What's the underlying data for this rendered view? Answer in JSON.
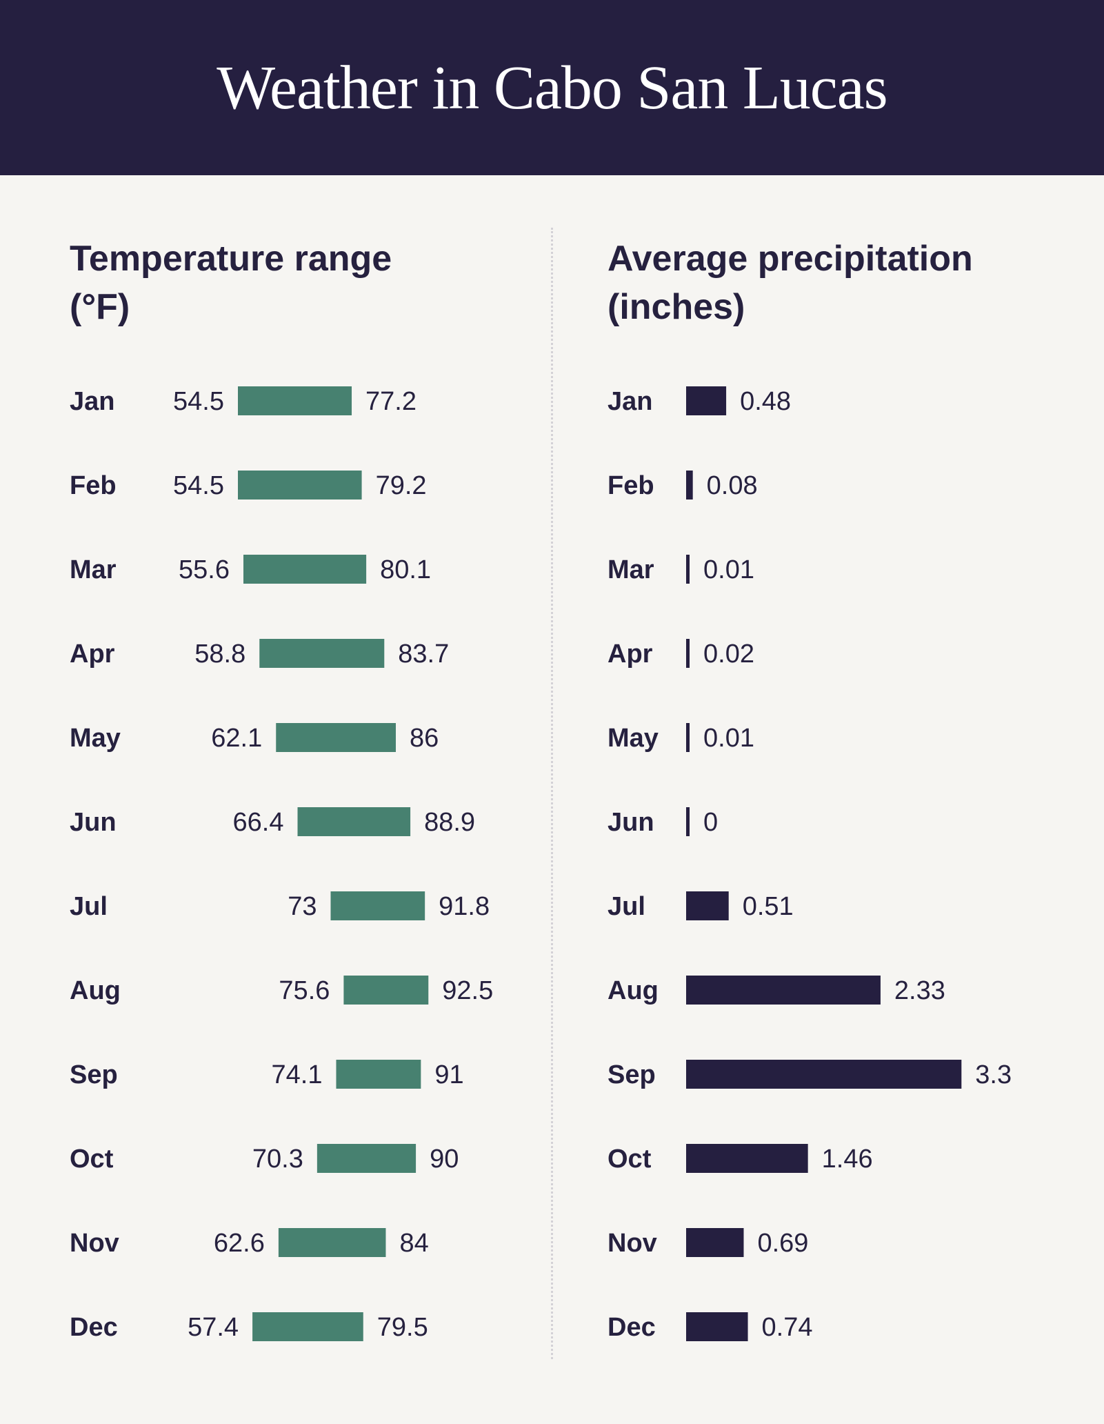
{
  "title": "Weather in Cabo San Lucas",
  "colors": {
    "header_bg": "#251f40",
    "background": "#f6f5f2",
    "temperature_bar": "#478170",
    "precipitation_bar": "#251f40",
    "text": "#26213f"
  },
  "chart_data": [
    {
      "type": "bar",
      "subtype": "floating-range",
      "orientation": "horizontal",
      "title": "Temperature range (°F)",
      "categories": [
        "Jan",
        "Feb",
        "Mar",
        "Apr",
        "May",
        "Jun",
        "Jul",
        "Aug",
        "Sep",
        "Oct",
        "Nov",
        "Dec"
      ],
      "series": [
        {
          "values": [
            54.5,
            54.5,
            55.6,
            58.8,
            62.1,
            66.4,
            73,
            75.6,
            74.1,
            70.3,
            62.6,
            57.4
          ]
        },
        {
          "values": [
            77.2,
            79.2,
            80.1,
            83.7,
            86,
            88.9,
            91.8,
            92.5,
            91,
            90,
            84,
            79.5
          ]
        }
      ],
      "low_labels": [
        "54.5",
        "54.5",
        "55.6",
        "58.8",
        "62.1",
        "66.4",
        "73",
        "75.6",
        "74.1",
        "70.3",
        "62.6",
        "57.4"
      ],
      "high_labels": [
        "77.2",
        "79.2",
        "80.1",
        "83.7",
        "86",
        "88.9",
        "91.8",
        "92.5",
        "91",
        "90",
        "84",
        "79.5"
      ],
      "grid": false,
      "legend": "none"
    },
    {
      "type": "bar",
      "orientation": "horizontal",
      "title": "Average precipitation (inches)",
      "categories": [
        "Jan",
        "Feb",
        "Mar",
        "Apr",
        "May",
        "Jun",
        "Jul",
        "Aug",
        "Sep",
        "Oct",
        "Nov",
        "Dec"
      ],
      "values": [
        0.48,
        0.08,
        0.01,
        0.02,
        0.01,
        0,
        0.51,
        2.33,
        3.3,
        1.46,
        0.69,
        0.74
      ],
      "labels": [
        "0.48",
        "0.08",
        "0.01",
        "0.02",
        "0.01",
        "0",
        "0.51",
        "2.33",
        "3.3",
        "1.46",
        "0.69",
        "0.74"
      ],
      "grid": false,
      "legend": "none"
    }
  ]
}
